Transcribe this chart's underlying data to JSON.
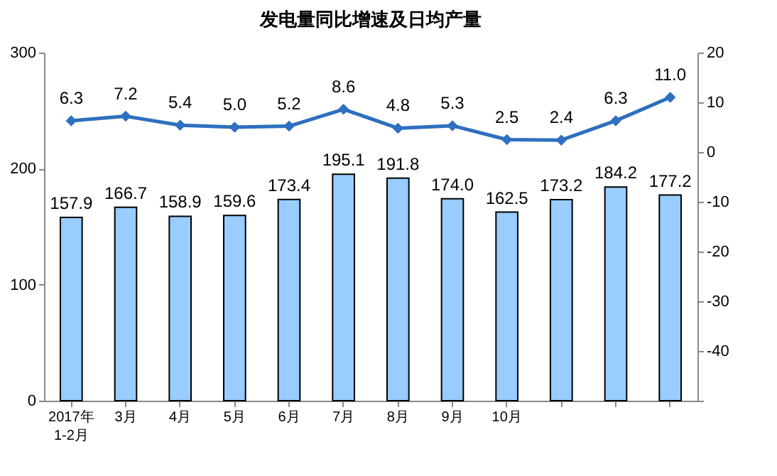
{
  "chart_data": {
    "type": "bar",
    "title": "发电量同比增速及日均产量",
    "categories": [
      "2017年\n1-2月",
      "3月",
      "4月",
      "5月",
      "6月",
      "7月",
      "8月",
      "9月",
      "10月",
      null,
      null,
      null
    ],
    "series": [
      {
        "color": "#99ccff",
        "values": [
          157.9,
          166.7,
          158.9,
          159.6,
          173.4,
          195.1,
          191.8,
          174.0,
          162.5,
          173.2,
          184.2,
          177.2
        ],
        "value_labels": [
          "157.9",
          "166.7",
          "158.9",
          "159.6",
          "173.4",
          "195.1",
          "191.8",
          "174.0",
          "162.5",
          "173.2",
          "184.2",
          "177.2"
        ]
      },
      {
        "type": "line",
        "axis": "y2",
        "color": "#2e6fbf",
        "marker": "diamond",
        "values": [
          6.3,
          7.2,
          5.4,
          5.0,
          5.2,
          8.6,
          4.8,
          5.3,
          2.5,
          2.4,
          6.3,
          11.0
        ],
        "value_labels": [
          "6.3",
          "7.2",
          "5.4",
          "5.0",
          "5.2",
          "8.6",
          "4.8",
          "5.3",
          "2.5",
          "2.4",
          "6.3",
          "11.0"
        ]
      }
    ],
    "ylim": [
      0,
      300
    ],
    "yticks": [
      0,
      100,
      200,
      300
    ],
    "y2lim": [
      -50,
      20
    ],
    "y2ticks": [
      {
        "value": -50,
        "label": null
      },
      -40,
      -30,
      -20,
      -10,
      0,
      10,
      20
    ],
    "grid": false
  }
}
